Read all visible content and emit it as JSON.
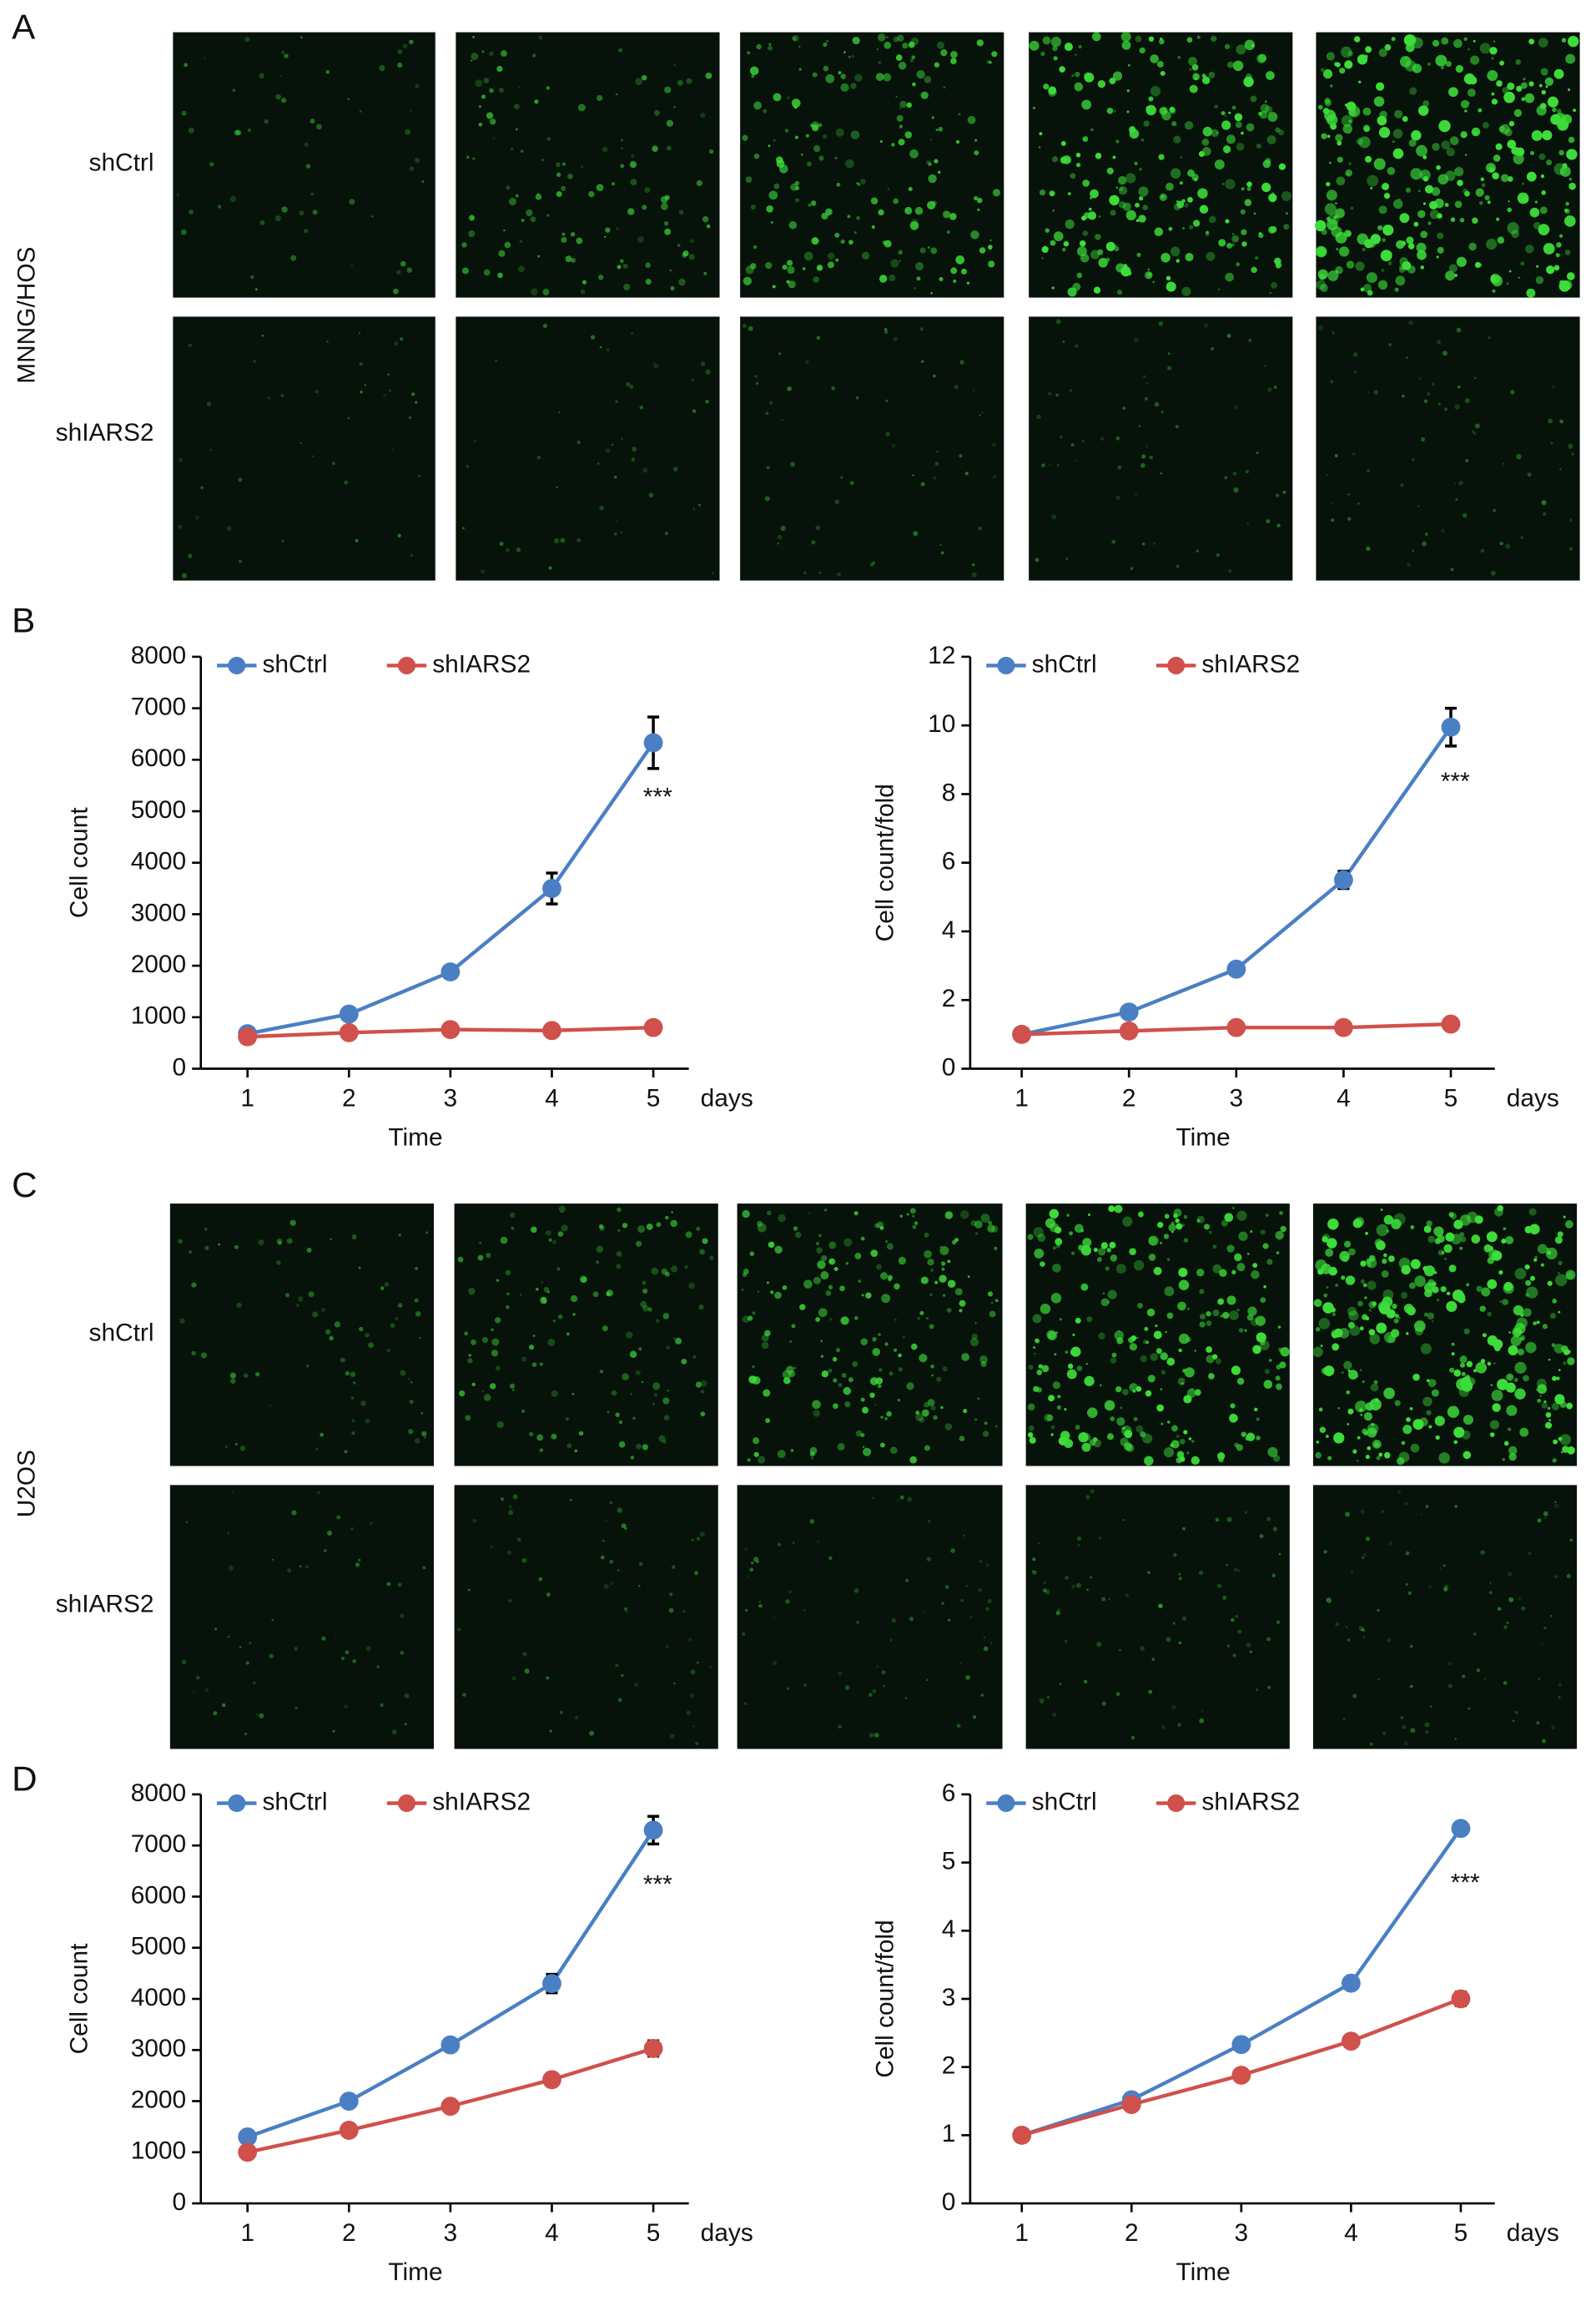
{
  "panel_labels": [
    "A",
    "B",
    "C",
    "D"
  ],
  "image_panels": [
    {
      "cell_line": "MNNG/HOS",
      "rows": [
        "shCtrl",
        "shIARS2"
      ]
    },
    {
      "cell_line": "U2OS",
      "rows": [
        "shCtrl",
        "shIARS2"
      ]
    }
  ],
  "chart_data": [
    {
      "type": "line",
      "xlabel": "Time",
      "x_unit": "days",
      "ylabel": "Cell count",
      "annotation": "***",
      "x": [
        1,
        2,
        3,
        4,
        5
      ],
      "xlim": [
        0.54,
        5.35
      ],
      "xticks": [
        1,
        2,
        3,
        4,
        5
      ],
      "ylim": [
        0,
        8000
      ],
      "yticks": [
        0,
        1000,
        2000,
        3000,
        4000,
        5000,
        6000,
        7000,
        8000
      ],
      "legend": "top",
      "series": [
        {
          "name": "shCtrl",
          "color": "#4a7fc4",
          "values": [
            680,
            1060,
            1880,
            3500,
            6330
          ],
          "errors": [
            null,
            null,
            null,
            300,
            500
          ]
        },
        {
          "name": "shIARS2",
          "color": "#d0504b",
          "values": [
            620,
            700,
            760,
            740,
            800
          ],
          "errors": [
            null,
            null,
            null,
            null,
            null
          ]
        }
      ]
    },
    {
      "type": "line",
      "xlabel": "Time",
      "x_unit": "days",
      "ylabel": "Cell count/fold",
      "annotation": "***",
      "x": [
        1,
        2,
        3,
        4,
        5
      ],
      "xlim": [
        0.52,
        5.41
      ],
      "xticks": [
        1,
        2,
        3,
        4,
        5
      ],
      "ylim": [
        0,
        12
      ],
      "yticks": [
        0,
        2,
        4,
        6,
        8,
        10,
        12
      ],
      "legend": "top",
      "series": [
        {
          "name": "shCtrl",
          "color": "#4a7fc4",
          "values": [
            1,
            1.65,
            2.9,
            5.5,
            9.95
          ],
          "errors": [
            null,
            null,
            null,
            0.25,
            0.55
          ]
        },
        {
          "name": "shIARS2",
          "color": "#d0504b",
          "values": [
            1,
            1.1,
            1.2,
            1.2,
            1.3
          ],
          "errors": [
            null,
            null,
            null,
            null,
            null
          ]
        }
      ]
    },
    {
      "type": "line",
      "xlabel": "Time",
      "x_unit": "days",
      "ylabel": "Cell count",
      "annotation": "***",
      "x": [
        1,
        2,
        3,
        4,
        5
      ],
      "xlim": [
        0.54,
        5.35
      ],
      "xticks": [
        1,
        2,
        3,
        4,
        5
      ],
      "ylim": [
        0,
        8000
      ],
      "yticks": [
        0,
        1000,
        2000,
        3000,
        4000,
        5000,
        6000,
        7000,
        8000
      ],
      "legend": "top",
      "series": [
        {
          "name": "shCtrl",
          "color": "#4a7fc4",
          "values": [
            1300,
            2000,
            3100,
            4300,
            7300
          ],
          "errors": [
            null,
            null,
            null,
            180,
            270
          ]
        },
        {
          "name": "shIARS2",
          "color": "#d0504b",
          "values": [
            1000,
            1430,
            1900,
            2420,
            3030
          ],
          "errors": [
            null,
            null,
            null,
            120,
            150
          ]
        }
      ]
    },
    {
      "type": "line",
      "xlabel": "Time",
      "x_unit": "days",
      "ylabel": "Cell count/fold",
      "annotation": "***",
      "x": [
        1,
        2,
        3,
        4,
        5
      ],
      "xlim": [
        0.53,
        5.31
      ],
      "xticks": [
        1,
        2,
        3,
        4,
        5
      ],
      "ylim": [
        0,
        6
      ],
      "yticks": [
        0,
        1,
        2,
        3,
        4,
        5,
        6
      ],
      "legend": "top",
      "series": [
        {
          "name": "shCtrl",
          "color": "#4a7fc4",
          "values": [
            1,
            1.52,
            2.33,
            3.23,
            5.5
          ],
          "errors": [
            null,
            null,
            null,
            null,
            null
          ]
        },
        {
          "name": "shIARS2",
          "color": "#d0504b",
          "values": [
            1,
            1.45,
            1.88,
            2.38,
            3.0
          ],
          "errors": [
            null,
            null,
            null,
            null,
            0.1
          ]
        }
      ]
    }
  ]
}
